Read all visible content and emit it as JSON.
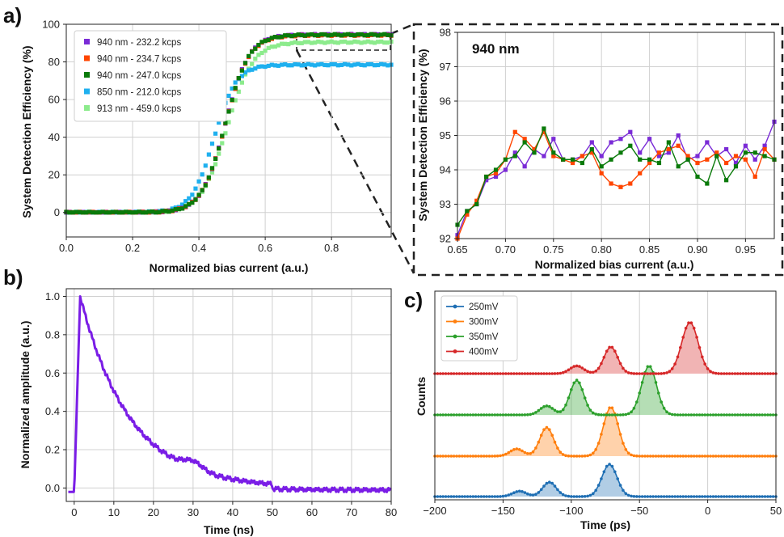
{
  "chart_data": [
    {
      "panel": "a)",
      "type": "scatter",
      "xlabel": "Normalized bias current (a.u.)",
      "ylabel": "System Detection Efficiency (%)",
      "xlim": [
        0.0,
        0.98
      ],
      "ylim": [
        -13,
        100
      ],
      "xticks": [
        "0.0",
        "0.2",
        "0.4",
        "0.6",
        "0.8"
      ],
      "yticks": [
        "0",
        "20",
        "40",
        "60",
        "80",
        "100"
      ],
      "grid": true,
      "legend": "top-left",
      "series": [
        {
          "name": "940 nm - 232.2 kcps",
          "color": "#7a2bd6",
          "marker": "square",
          "x0": 0.48,
          "k": 28,
          "plateau": 94.5
        },
        {
          "name": "940 nm - 234.7 kcps",
          "color": "#ff4500",
          "marker": "square",
          "x0": 0.48,
          "k": 28,
          "plateau": 94.2
        },
        {
          "name": "940 nm - 247.0 kcps",
          "color": "#0a7a0a",
          "marker": "square",
          "x0": 0.48,
          "k": 28,
          "plateau": 94.4
        },
        {
          "name": "850 nm - 212.0 kcps",
          "color": "#1fb0ef",
          "marker": "square",
          "x0": 0.445,
          "k": 30,
          "plateau": 78.5
        },
        {
          "name": "913 nm - 459.0 kcps",
          "color": "#8ceb8c",
          "marker": "square",
          "x0": 0.485,
          "k": 26,
          "plateau": 90.5
        }
      ]
    },
    {
      "panel": "a) inset",
      "type": "line",
      "annotation": "940 nm",
      "xlabel": "Normalized bias current (a.u.)",
      "ylabel": "System Detection Efficiency (%)",
      "xlim": [
        0.65,
        0.98
      ],
      "ylim": [
        92,
        98
      ],
      "xticks": [
        "0.65",
        "0.70",
        "0.75",
        "0.80",
        "0.85",
        "0.90",
        "0.95"
      ],
      "yticks": [
        "92",
        "93",
        "94",
        "95",
        "96",
        "97",
        "98"
      ],
      "grid": true,
      "x": [
        0.65,
        0.66,
        0.67,
        0.68,
        0.69,
        0.7,
        0.71,
        0.72,
        0.73,
        0.74,
        0.75,
        0.76,
        0.77,
        0.78,
        0.79,
        0.8,
        0.81,
        0.82,
        0.83,
        0.84,
        0.85,
        0.86,
        0.87,
        0.88,
        0.89,
        0.9,
        0.91,
        0.92,
        0.93,
        0.94,
        0.95,
        0.96,
        0.97,
        0.98
      ],
      "series": [
        {
          "color": "#7a2bd6",
          "values": [
            92.1,
            92.8,
            93.0,
            93.7,
            93.8,
            94.0,
            94.5,
            94.1,
            94.6,
            94.4,
            94.9,
            94.3,
            94.3,
            94.4,
            94.8,
            94.4,
            94.8,
            94.9,
            95.1,
            94.5,
            94.9,
            94.4,
            94.5,
            95.0,
            94.3,
            94.4,
            94.8,
            94.4,
            94.6,
            94.2,
            94.7,
            94.3,
            94.7,
            95.4
          ]
        },
        {
          "color": "#ff4500",
          "values": [
            92.0,
            92.7,
            93.1,
            93.8,
            93.9,
            94.3,
            95.1,
            94.9,
            94.6,
            95.1,
            94.4,
            94.3,
            94.2,
            94.4,
            94.5,
            93.9,
            93.6,
            93.5,
            93.6,
            93.9,
            94.2,
            94.5,
            94.6,
            94.7,
            94.4,
            94.2,
            94.3,
            94.5,
            94.2,
            94.4,
            94.3,
            93.8,
            94.6,
            94.3
          ]
        },
        {
          "color": "#0a7a0a",
          "values": [
            92.4,
            92.8,
            93.0,
            93.8,
            94.0,
            94.3,
            94.4,
            94.8,
            94.5,
            95.2,
            94.5,
            94.3,
            94.3,
            94.2,
            94.6,
            94.1,
            94.3,
            94.5,
            94.7,
            94.3,
            94.3,
            94.2,
            94.8,
            94.1,
            94.3,
            93.8,
            93.6,
            94.4,
            93.7,
            94.1,
            94.5,
            94.5,
            94.4,
            94.3
          ]
        }
      ]
    },
    {
      "panel": "b)",
      "type": "line",
      "xlabel": "Time (ns)",
      "ylabel": "Normalized amplitude (a.u.)",
      "xlim": [
        -2,
        80
      ],
      "ylim": [
        -0.07,
        1.04
      ],
      "xticks": [
        "0",
        "10",
        "20",
        "30",
        "40",
        "50",
        "60",
        "70",
        "80"
      ],
      "yticks": [
        "0.0",
        "0.2",
        "0.4",
        "0.6",
        "0.8",
        "1.0"
      ],
      "grid": true,
      "color": "#7a1de6",
      "rise_start_ns": 0,
      "peak_ns": 1.5,
      "peak_value": 1.0,
      "decay_tau_ns": 12.5,
      "bump_center_ns": 30,
      "bump_height": 0.04,
      "settle_ns": 50,
      "baseline": -0.02
    },
    {
      "panel": "c)",
      "type": "line",
      "xlabel": "Time (ps)",
      "ylabel": "Counts",
      "xlim": [
        -200,
        50
      ],
      "xticks": [
        "−200",
        "−150",
        "−100",
        "−50",
        "0",
        "50"
      ],
      "grid": true,
      "legend": "top-left",
      "series": [
        {
          "name": "250mV",
          "color": "#1f6fb4",
          "peaks": [
            {
              "t": -138,
              "a": 0.09,
              "w": 5
            },
            {
              "t": -116,
              "a": 0.24,
              "w": 5
            },
            {
              "t": -72,
              "a": 0.54,
              "w": 5.5
            }
          ]
        },
        {
          "name": "300mV",
          "color": "#ff7f0e",
          "peaks": [
            {
              "t": -140,
              "a": 0.12,
              "w": 5
            },
            {
              "t": -118,
              "a": 0.48,
              "w": 5
            },
            {
              "t": -71,
              "a": 0.82,
              "w": 5.5
            }
          ]
        },
        {
          "name": "350mV",
          "color": "#2ca02c",
          "peaks": [
            {
              "t": -118,
              "a": 0.15,
              "w": 5
            },
            {
              "t": -96,
              "a": 0.58,
              "w": 5
            },
            {
              "t": -43,
              "a": 0.82,
              "w": 5.5
            }
          ]
        },
        {
          "name": "400mV",
          "color": "#d62728",
          "peaks": [
            {
              "t": -96,
              "a": 0.13,
              "w": 5
            },
            {
              "t": -71,
              "a": 0.45,
              "w": 5
            },
            {
              "t": -13,
              "a": 0.86,
              "w": 6
            }
          ]
        }
      ]
    }
  ]
}
